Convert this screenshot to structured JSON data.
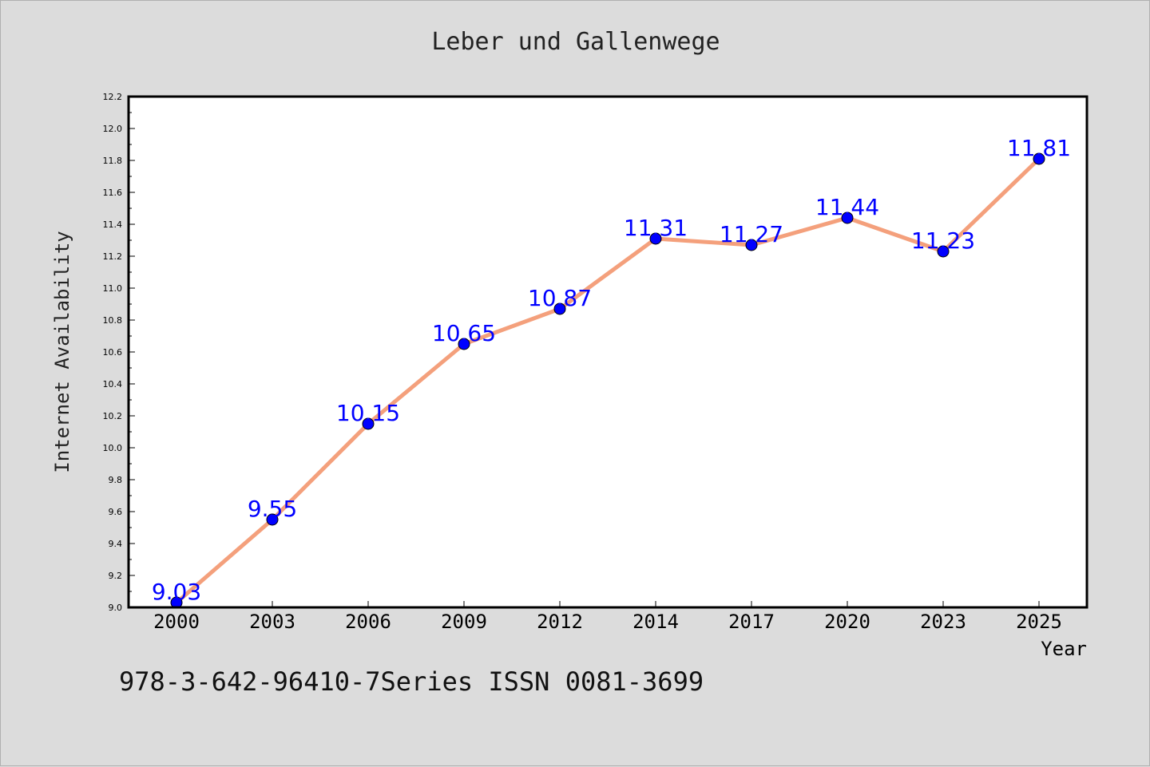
{
  "chart_data": {
    "type": "line",
    "title": "Leber und Gallenwege",
    "xlabel": "Year",
    "ylabel": "Internet Availability",
    "categories": [
      "2000",
      "2003",
      "2006",
      "2009",
      "2012",
      "2014",
      "2017",
      "2020",
      "2023",
      "2025"
    ],
    "series": [
      {
        "values": [
          9.03,
          9.55,
          10.15,
          10.65,
          10.87,
          11.31,
          11.27,
          11.44,
          11.23,
          11.81
        ],
        "labels": [
          "9.03",
          "9.55",
          "10.15",
          "10.65",
          "10.87",
          "11.31",
          "11.27",
          "11.44",
          "11.23",
          "11.81"
        ],
        "line_color": "#f4a07c",
        "marker_color": "#0000ff"
      }
    ],
    "ylim": [
      9.0,
      12.2
    ],
    "yticks": [
      "9.0",
      "9.2",
      "9.4",
      "9.6",
      "9.8",
      "10.0",
      "10.2",
      "10.4",
      "10.6",
      "10.8",
      "11.0",
      "11.2",
      "11.4",
      "11.6",
      "11.8",
      "12.0",
      "12.2"
    ],
    "grid": false,
    "label_color": "#0000ff"
  },
  "footer": {
    "note": "978-3-642-96410-7Series ISSN 0081-3699"
  }
}
